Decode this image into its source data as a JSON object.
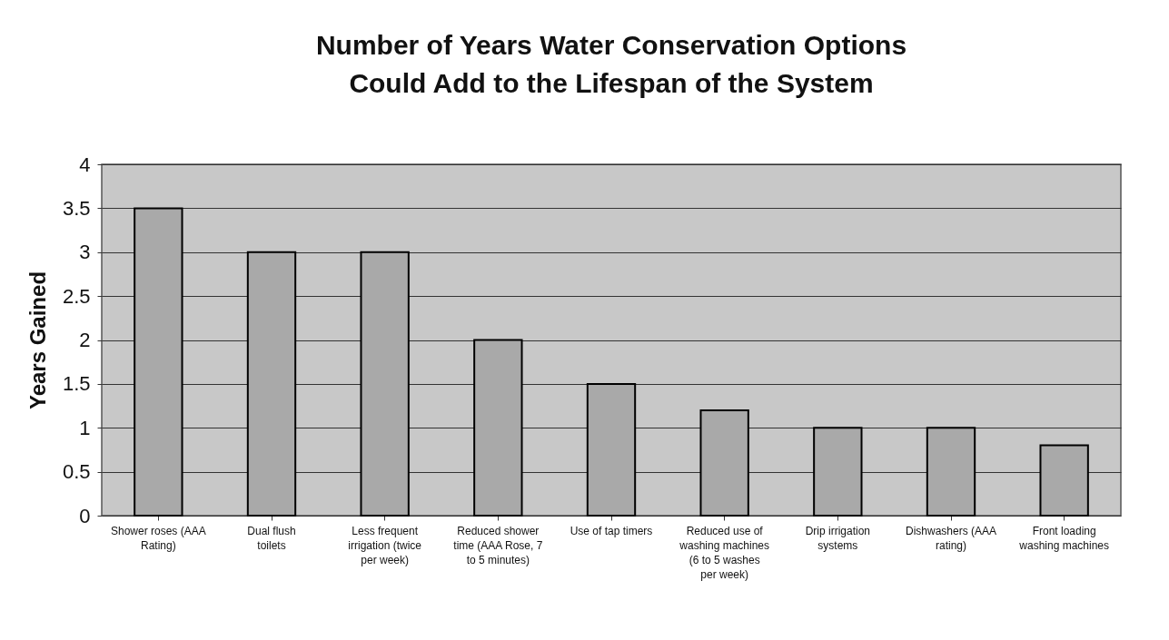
{
  "chart_data": {
    "type": "bar",
    "title": [
      "Number of Years Water Conservation Options",
      "Could Add to the Lifespan of the System"
    ],
    "ylabel": "Years Gained",
    "categories": [
      "Shower roses (AAA Rating)",
      "Dual flush toilets",
      "Less frequent irrigation (twice per week)",
      "Reduced shower time (AAA Rose, 7 to 5 minutes)",
      "Use of tap timers",
      "Reduced use of washing machines (6 to 5 washes per week)",
      "Drip irrigation systems",
      "Dishwashers (AAA rating)",
      "Front loading washing machines"
    ],
    "values": [
      3.5,
      3,
      3,
      2,
      1.5,
      1.2,
      1,
      1,
      0.8
    ],
    "color": "#a9a9a9",
    "ylim": [
      0,
      4
    ],
    "yticks": [
      0,
      0.5,
      1,
      1.5,
      2,
      2.5,
      3,
      3.5,
      4
    ],
    "grid": "y"
  }
}
